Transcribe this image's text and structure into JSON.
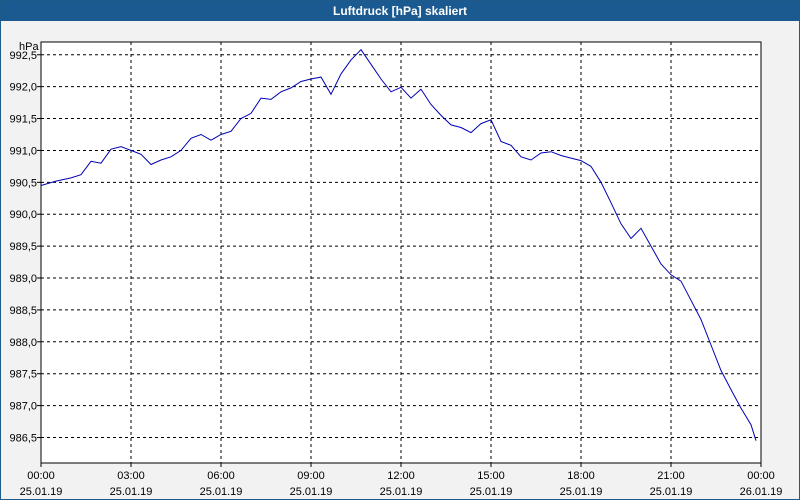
{
  "window": {
    "title": "Luftdruck [hPa] skaliert"
  },
  "chart_data": {
    "type": "line",
    "ylabel": "hPa",
    "ylim": [
      986.1,
      992.7
    ],
    "xlim": [
      "2019-01-25 00:00",
      "2019-01-26 00:00"
    ],
    "grid": true,
    "y_ticks": [
      "992,5",
      "992,0",
      "991,5",
      "991,0",
      "990,5",
      "990,0",
      "989,5",
      "989,0",
      "988,5",
      "988,0",
      "987,5",
      "987,0",
      "986,5"
    ],
    "y_tick_values": [
      992.5,
      992.0,
      991.5,
      991.0,
      990.5,
      990.0,
      989.5,
      989.0,
      988.5,
      988.0,
      987.5,
      987.0,
      986.5
    ],
    "x_ticks": [
      {
        "time": "00:00",
        "date": "25.01.19"
      },
      {
        "time": "03:00",
        "date": "25.01.19"
      },
      {
        "time": "06:00",
        "date": "25.01.19"
      },
      {
        "time": "09:00",
        "date": "25.01.19"
      },
      {
        "time": "12:00",
        "date": "25.01.19"
      },
      {
        "time": "15:00",
        "date": "25.01.19"
      },
      {
        "time": "18:00",
        "date": "25.01.19"
      },
      {
        "time": "21:00",
        "date": "25.01.19"
      },
      {
        "time": "00:00",
        "date": "26.01.19"
      }
    ],
    "series": [
      {
        "color": "#0000b4",
        "x": [
          "2019-01-25 00:00",
          "2019-01-25 00:30",
          "2019-01-25 01:00",
          "2019-01-25 01:20",
          "2019-01-25 01:40",
          "2019-01-25 02:00",
          "2019-01-25 02:20",
          "2019-01-25 02:40",
          "2019-01-25 03:00",
          "2019-01-25 03:20",
          "2019-01-25 03:40",
          "2019-01-25 04:00",
          "2019-01-25 04:20",
          "2019-01-25 04:40",
          "2019-01-25 05:00",
          "2019-01-25 05:20",
          "2019-01-25 05:40",
          "2019-01-25 06:00",
          "2019-01-25 06:20",
          "2019-01-25 06:40",
          "2019-01-25 07:00",
          "2019-01-25 07:20",
          "2019-01-25 07:40",
          "2019-01-25 08:00",
          "2019-01-25 08:20",
          "2019-01-25 08:40",
          "2019-01-25 09:00",
          "2019-01-25 09:20",
          "2019-01-25 09:40",
          "2019-01-25 10:00",
          "2019-01-25 10:20",
          "2019-01-25 10:40",
          "2019-01-25 11:00",
          "2019-01-25 11:20",
          "2019-01-25 11:40",
          "2019-01-25 12:00",
          "2019-01-25 12:20",
          "2019-01-25 12:40",
          "2019-01-25 13:00",
          "2019-01-25 13:20",
          "2019-01-25 13:40",
          "2019-01-25 14:00",
          "2019-01-25 14:20",
          "2019-01-25 14:40",
          "2019-01-25 15:00",
          "2019-01-25 15:20",
          "2019-01-25 15:40",
          "2019-01-25 16:00",
          "2019-01-25 16:20",
          "2019-01-25 16:40",
          "2019-01-25 17:00",
          "2019-01-25 17:20",
          "2019-01-25 17:40",
          "2019-01-25 18:00",
          "2019-01-25 18:20",
          "2019-01-25 18:40",
          "2019-01-25 19:00",
          "2019-01-25 19:20",
          "2019-01-25 19:40",
          "2019-01-25 20:00",
          "2019-01-25 20:20",
          "2019-01-25 20:40",
          "2019-01-25 21:00",
          "2019-01-25 21:20",
          "2019-01-25 21:40",
          "2019-01-25 22:00",
          "2019-01-25 22:20",
          "2019-01-25 22:40",
          "2019-01-25 23:00",
          "2019-01-25 23:20",
          "2019-01-25 23:40",
          "2019-01-25 23:50"
        ],
        "y": [
          990.45,
          990.52,
          990.57,
          990.62,
          990.83,
          990.8,
          991.02,
          991.06,
          991.0,
          990.94,
          990.78,
          990.85,
          990.9,
          991.0,
          991.19,
          991.25,
          991.16,
          991.25,
          991.3,
          991.5,
          991.58,
          991.82,
          991.8,
          991.92,
          991.98,
          992.08,
          992.12,
          992.15,
          991.88,
          992.2,
          992.42,
          992.58,
          992.35,
          992.12,
          991.92,
          991.99,
          991.82,
          991.96,
          991.72,
          991.55,
          991.4,
          991.36,
          991.28,
          991.42,
          991.48,
          991.14,
          991.08,
          990.9,
          990.85,
          990.96,
          990.98,
          990.92,
          990.88,
          990.84,
          990.75,
          990.5,
          990.18,
          989.85,
          989.62,
          989.78,
          989.5,
          989.22,
          989.05,
          988.95,
          988.65,
          988.35,
          987.95,
          987.55,
          987.25,
          986.96,
          986.7,
          986.45
        ]
      }
    ]
  }
}
